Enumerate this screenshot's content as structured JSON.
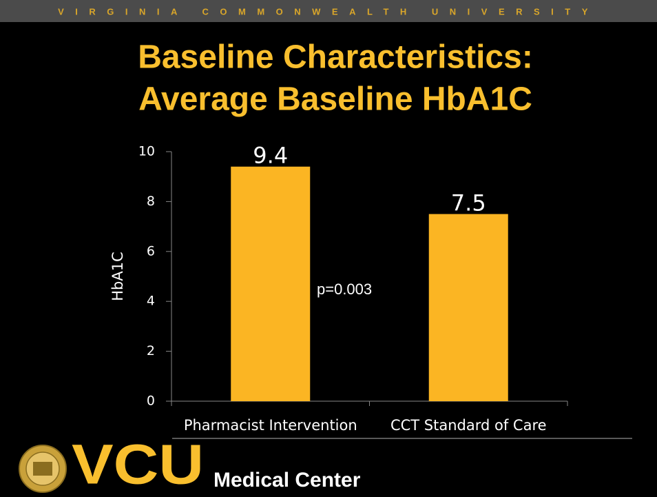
{
  "header": {
    "banner": "VIRGINIA COMMONWEALTH UNIVERSITY"
  },
  "chart_data": {
    "type": "bar",
    "title": [
      "Baseline Characteristics:",
      "Average Baseline HbA1C"
    ],
    "y_label": "HbA1C",
    "categories": [
      "Pharmacist Intervention",
      "CCT Standard of Care"
    ],
    "values": [
      9.4,
      7.5
    ],
    "color": "#fbb523",
    "ylim": [
      0,
      10
    ],
    "yticks": [
      0,
      2,
      4,
      6,
      8,
      10
    ],
    "annotations": [
      "p=0.003"
    ]
  },
  "footer": {
    "logo": "VCU",
    "tagline": "Medical Center"
  }
}
